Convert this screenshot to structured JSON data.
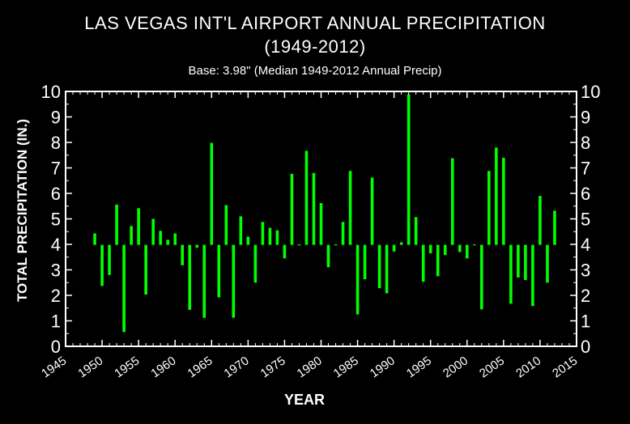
{
  "chart_data": {
    "type": "bar",
    "title": "LAS VEGAS INT'L AIRPORT ANNUAL PRECIPITATION",
    "title_line2": "(1949-2012)",
    "subtitle": "Base: 3.98\" (Median 1949-2012 Annual Precip)",
    "xlabel": "YEAR",
    "ylabel": "TOTAL PRECIPITATION (IN.)",
    "base": 3.98,
    "xlim": [
      1945,
      2015
    ],
    "ylim": [
      0,
      10
    ],
    "x_ticks": [
      "1945",
      "1950",
      "1955",
      "1960",
      "1965",
      "1970",
      "1975",
      "1980",
      "1985",
      "1990",
      "1995",
      "2000",
      "2005",
      "2010",
      "2015"
    ],
    "y_ticks": [
      "0",
      "1",
      "2",
      "3",
      "4",
      "5",
      "6",
      "7",
      "8",
      "9",
      "10"
    ],
    "bar_color": "#00ff00",
    "grid": false,
    "x": [
      1949,
      1950,
      1951,
      1952,
      1953,
      1954,
      1955,
      1956,
      1957,
      1958,
      1959,
      1960,
      1961,
      1962,
      1963,
      1964,
      1965,
      1966,
      1967,
      1968,
      1969,
      1970,
      1971,
      1972,
      1973,
      1974,
      1975,
      1976,
      1977,
      1978,
      1979,
      1980,
      1981,
      1982,
      1983,
      1984,
      1985,
      1986,
      1987,
      1988,
      1989,
      1990,
      1991,
      1992,
      1993,
      1994,
      1995,
      1996,
      1997,
      1998,
      1999,
      2000,
      2001,
      2002,
      2003,
      2004,
      2005,
      2006,
      2007,
      2008,
      2009,
      2010,
      2011,
      2012
    ],
    "values": [
      4.43,
      2.37,
      2.8,
      5.56,
      0.56,
      4.72,
      5.42,
      2.03,
      5.0,
      4.53,
      4.18,
      4.43,
      3.18,
      1.43,
      3.87,
      1.12,
      7.98,
      1.92,
      5.54,
      1.12,
      5.1,
      4.3,
      2.5,
      4.88,
      4.65,
      4.55,
      3.45,
      6.77,
      3.98,
      7.67,
      6.8,
      5.62,
      3.1,
      3.98,
      4.88,
      6.88,
      1.25,
      2.63,
      6.62,
      2.28,
      2.08,
      3.72,
      4.08,
      9.88,
      5.07,
      2.53,
      3.65,
      2.75,
      3.58,
      7.38,
      3.7,
      3.45,
      3.98,
      1.45,
      6.88,
      7.8,
      7.4,
      1.67,
      2.7,
      2.6,
      1.58,
      5.9,
      2.5,
      5.32
    ]
  }
}
